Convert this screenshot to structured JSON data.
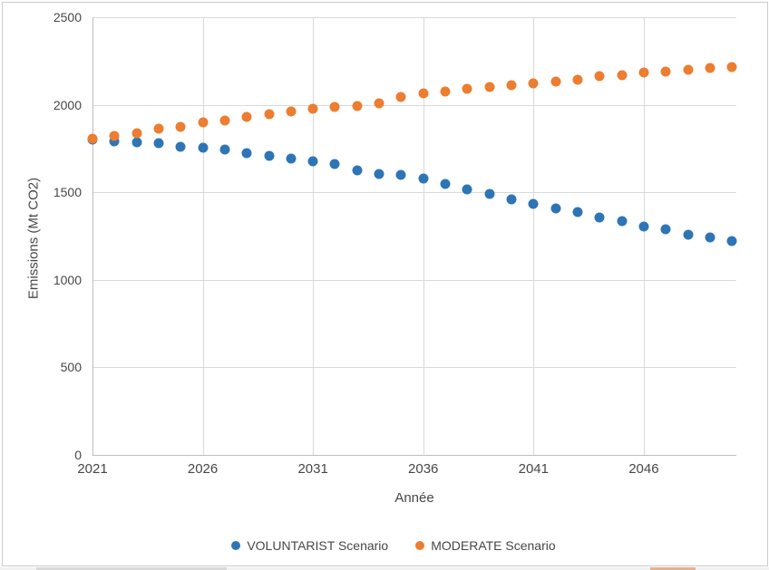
{
  "chart_data": {
    "type": "scatter",
    "title": "",
    "xlabel": "Année",
    "ylabel": "Emissions (Mt CO2)",
    "x": [
      2021,
      2022,
      2023,
      2024,
      2025,
      2026,
      2027,
      2028,
      2029,
      2030,
      2031,
      2032,
      2033,
      2034,
      2035,
      2036,
      2037,
      2038,
      2039,
      2040,
      2041,
      2042,
      2043,
      2044,
      2045,
      2046,
      2047,
      2048,
      2049,
      2050
    ],
    "series": [
      {
        "name": "VOLUNTARIST Scenario",
        "color": "#2E75B6",
        "values": [
          1800,
          1793,
          1787,
          1782,
          1760,
          1757,
          1744,
          1722,
          1708,
          1691,
          1675,
          1660,
          1624,
          1604,
          1600,
          1581,
          1550,
          1517,
          1490,
          1461,
          1435,
          1408,
          1387,
          1357,
          1335,
          1306,
          1287,
          1258,
          1241,
          1221
        ]
      },
      {
        "name": "MODERATE Scenario",
        "color": "#ED7D31",
        "values": [
          1805,
          1821,
          1840,
          1862,
          1876,
          1900,
          1912,
          1931,
          1945,
          1960,
          1978,
          1988,
          1995,
          2010,
          2046,
          2066,
          2078,
          2091,
          2104,
          2114,
          2124,
          2134,
          2143,
          2161,
          2168,
          2182,
          2191,
          2200,
          2208,
          2213
        ]
      }
    ],
    "xlim": [
      2021,
      2050.2
    ],
    "ylim": [
      0,
      2500
    ],
    "x_ticks": [
      2021,
      2026,
      2031,
      2036,
      2041,
      2046
    ],
    "y_ticks": [
      0,
      500,
      1000,
      1500,
      2000,
      2500
    ],
    "grid": true,
    "legend_position": "bottom",
    "gridline_color": "#d9d9d9",
    "axis_line_color": "#bfbfbf",
    "text_color": "#474747"
  }
}
